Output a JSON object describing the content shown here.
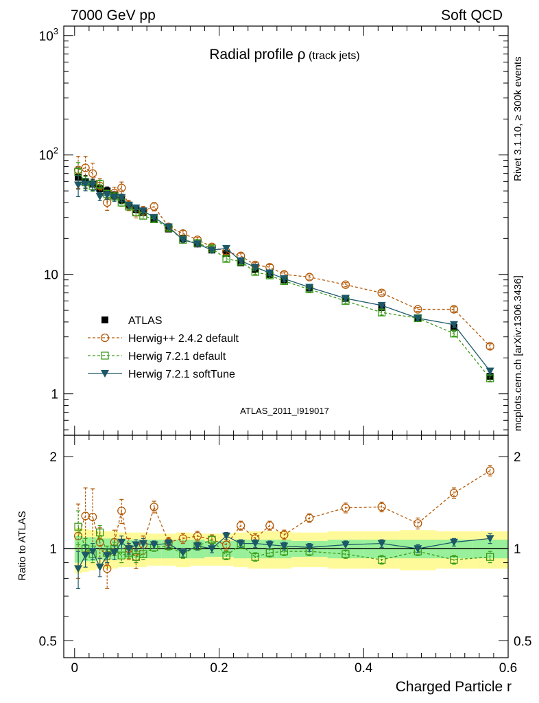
{
  "header": {
    "left": "7000 GeV pp",
    "right": "Soft QCD",
    "plot_title_main": "Radial profile ",
    "plot_title_rho": "ρ",
    "plot_title_sub": " (track jets)",
    "side_rivet": "Rivet 3.1.10, ≥ 300k events",
    "side_mcplots": "mcplots.cern.ch [arXiv:1306.3436]",
    "analysis_id": "ATLAS_2011_I919017"
  },
  "colors": {
    "atlas": "#000000",
    "herwigpp": "#b35806",
    "herwig721": "#3a9a1a",
    "softtune": "#1d5868",
    "band_yellow": "#fffa99",
    "band_green": "#99f09a"
  },
  "chart_data": [
    {
      "type": "scatter",
      "panel": "main",
      "yscale": "log",
      "xlabel": "Charged Particle r",
      "ylabel": "",
      "xlim": [
        -0.015,
        0.6
      ],
      "ylim": [
        0.45,
        1200
      ],
      "yticks": [
        {
          "value": 1000,
          "base": "10",
          "exp": "3"
        },
        {
          "value": 100,
          "base": "10",
          "exp": "2"
        },
        {
          "value": 10,
          "base": "10",
          "exp": ""
        },
        {
          "value": 1,
          "base": "1",
          "exp": ""
        }
      ],
      "x": [
        0.005,
        0.015,
        0.025,
        0.035,
        0.045,
        0.055,
        0.065,
        0.075,
        0.085,
        0.095,
        0.11,
        0.13,
        0.15,
        0.17,
        0.19,
        0.21,
        0.23,
        0.25,
        0.27,
        0.29,
        0.325,
        0.375,
        0.425,
        0.475,
        0.525,
        0.575
      ],
      "series": [
        {
          "name": "ATLAS",
          "key": "atlas",
          "marker": "square-filled",
          "values": [
            65,
            60,
            57,
            52,
            50,
            46,
            42,
            38,
            35,
            33,
            29,
            24,
            20,
            18,
            16,
            15,
            12.5,
            11,
            10,
            9,
            7.7,
            6.3,
            5.3,
            4.3,
            3.6,
            1.4
          ],
          "err_rel": [
            0.2,
            0.12,
            0.1,
            0.08,
            0.08,
            0.07,
            0.07,
            0.06,
            0.06,
            0.06,
            0.05,
            0.05,
            0.05,
            0.05,
            0.05,
            0.05,
            0.05,
            0.05,
            0.05,
            0.05,
            0.05,
            0.05,
            0.06,
            0.06,
            0.07,
            0.1
          ]
        },
        {
          "name": "Herwig++ 2.4.2 default",
          "key": "herwigpp",
          "marker": "circle-open",
          "dash": true,
          "values": [
            75,
            78,
            70,
            55,
            40,
            48,
            53,
            38,
            33,
            34,
            37,
            25,
            22,
            19.5,
            17,
            15.5,
            14.3,
            12,
            11.5,
            10,
            9.5,
            8.2,
            7,
            5.1,
            5.1,
            2.5
          ],
          "err_rel": [
            0.3,
            0.25,
            0.22,
            0.15,
            0.14,
            0.12,
            0.12,
            0.1,
            0.1,
            0.09,
            0.08,
            0.06,
            0.06,
            0.05,
            0.05,
            0.05,
            0.05,
            0.05,
            0.05,
            0.05,
            0.04,
            0.04,
            0.04,
            0.04,
            0.05,
            0.05
          ]
        },
        {
          "name": "Herwig 7.2.1 default",
          "key": "herwig721",
          "marker": "square-open",
          "dash": true,
          "values": [
            72,
            59,
            55,
            57,
            47,
            45,
            40,
            37,
            33,
            31,
            29,
            24.5,
            19.5,
            18.3,
            16.5,
            13.5,
            12.8,
            10.5,
            9.8,
            8.8,
            7.5,
            6,
            4.8,
            4.3,
            3.2,
            1.35
          ],
          "err_rel": [
            0.2,
            0.12,
            0.1,
            0.08,
            0.08,
            0.07,
            0.07,
            0.06,
            0.06,
            0.06,
            0.05,
            0.05,
            0.05,
            0.05,
            0.05,
            0.05,
            0.05,
            0.05,
            0.05,
            0.05,
            0.05,
            0.05,
            0.05,
            0.05,
            0.05,
            0.06
          ]
        },
        {
          "name": "Herwig 7.2.1 softTune",
          "key": "softtune",
          "marker": "triangle-down-filled",
          "dash": false,
          "values": [
            56,
            57,
            56,
            45,
            46,
            44,
            44,
            38,
            36,
            34,
            30,
            25,
            19.5,
            18,
            16,
            16.5,
            13,
            11.5,
            10.3,
            9.2,
            7.8,
            6.3,
            5.5,
            4.3,
            3.8,
            1.55
          ],
          "err_rel": [
            0.2,
            0.12,
            0.1,
            0.08,
            0.08,
            0.07,
            0.07,
            0.06,
            0.06,
            0.06,
            0.05,
            0.05,
            0.05,
            0.05,
            0.05,
            0.05,
            0.05,
            0.05,
            0.05,
            0.05,
            0.05,
            0.05,
            0.05,
            0.05,
            0.05,
            0.06
          ]
        }
      ],
      "legend_position": "middle-left"
    },
    {
      "type": "scatter",
      "panel": "ratio",
      "yscale": "log",
      "xlabel": "Charged Particle r",
      "ylabel": "Ratio to ATLAS",
      "xlim": [
        -0.015,
        0.6
      ],
      "ylim": [
        0.44,
        2.35
      ],
      "yticks": [
        {
          "value": 2,
          "label": "2"
        },
        {
          "value": 1,
          "label": "1"
        },
        {
          "value": 0.5,
          "label": "0.5"
        }
      ],
      "xticks": [
        {
          "value": 0,
          "label": "0"
        },
        {
          "value": 0.2,
          "label": "0.2"
        },
        {
          "value": 0.4,
          "label": "0.4"
        },
        {
          "value": 0.6,
          "label": "0.6"
        }
      ],
      "x": [
        0.005,
        0.015,
        0.025,
        0.035,
        0.045,
        0.055,
        0.065,
        0.075,
        0.085,
        0.095,
        0.11,
        0.13,
        0.15,
        0.17,
        0.19,
        0.21,
        0.23,
        0.25,
        0.27,
        0.29,
        0.325,
        0.375,
        0.425,
        0.475,
        0.525,
        0.575
      ],
      "band_edges": [
        0,
        0.01,
        0.02,
        0.03,
        0.04,
        0.05,
        0.06,
        0.07,
        0.08,
        0.09,
        0.1,
        0.12,
        0.14,
        0.16,
        0.18,
        0.2,
        0.22,
        0.24,
        0.26,
        0.28,
        0.3,
        0.35,
        0.4,
        0.45,
        0.5,
        0.55,
        0.6
      ],
      "band_stat": [
        0.1,
        0.09,
        0.09,
        0.08,
        0.08,
        0.08,
        0.07,
        0.07,
        0.07,
        0.07,
        0.07,
        0.07,
        0.07,
        0.07,
        0.06,
        0.06,
        0.07,
        0.07,
        0.07,
        0.07,
        0.06,
        0.07,
        0.07,
        0.07,
        0.07,
        0.07
      ],
      "band_total": [
        0.17,
        0.16,
        0.15,
        0.14,
        0.14,
        0.14,
        0.13,
        0.13,
        0.13,
        0.13,
        0.12,
        0.12,
        0.13,
        0.12,
        0.12,
        0.12,
        0.13,
        0.14,
        0.14,
        0.14,
        0.13,
        0.14,
        0.14,
        0.15,
        0.14,
        0.14
      ],
      "series": [
        {
          "name": "Herwig++ 2.4.2 default",
          "key": "herwigpp",
          "marker": "circle-open",
          "dash": true,
          "values": [
            1.1,
            1.28,
            1.27,
            1.05,
            0.86,
            1.05,
            1.33,
            1.0,
            0.94,
            1.03,
            1.37,
            1.05,
            1.08,
            1.1,
            1.07,
            1.03,
            1.19,
            1.08,
            1.19,
            1.11,
            1.26,
            1.36,
            1.37,
            1.21,
            1.52,
            1.8
          ],
          "err": [
            0.3,
            0.3,
            0.3,
            0.12,
            0.12,
            0.1,
            0.12,
            0.08,
            0.08,
            0.07,
            0.06,
            0.04,
            0.04,
            0.04,
            0.04,
            0.04,
            0.04,
            0.04,
            0.04,
            0.04,
            0.04,
            0.05,
            0.05,
            0.05,
            0.06,
            0.07
          ]
        },
        {
          "name": "Herwig 7.2.1 default",
          "key": "herwig721",
          "marker": "square-open",
          "dash": true,
          "values": [
            1.18,
            1.0,
            0.96,
            1.13,
            0.97,
            1.0,
            0.95,
            0.97,
            0.94,
            0.96,
            1.01,
            1.02,
            0.96,
            1.02,
            1.07,
            0.95,
            1.03,
            0.94,
            0.97,
            0.98,
            0.98,
            0.96,
            0.92,
            0.98,
            0.92,
            0.94
          ],
          "err": [
            0.15,
            0.08,
            0.06,
            0.06,
            0.05,
            0.05,
            0.05,
            0.04,
            0.04,
            0.04,
            0.03,
            0.03,
            0.03,
            0.03,
            0.03,
            0.03,
            0.03,
            0.03,
            0.03,
            0.03,
            0.03,
            0.03,
            0.03,
            0.03,
            0.03,
            0.04
          ]
        },
        {
          "name": "Herwig 7.2.1 softTune",
          "key": "softtune",
          "marker": "triangle-down-filled",
          "dash": false,
          "values": [
            0.86,
            0.95,
            0.98,
            0.87,
            0.95,
            0.97,
            1.05,
            1.0,
            1.03,
            1.04,
            1.03,
            1.04,
            0.97,
            1.02,
            1.0,
            1.1,
            1.04,
            1.04,
            1.03,
            1.02,
            1.01,
            1.03,
            1.04,
            1.0,
            1.05,
            1.08
          ],
          "err": [
            0.12,
            0.08,
            0.06,
            0.06,
            0.05,
            0.05,
            0.05,
            0.04,
            0.04,
            0.04,
            0.03,
            0.03,
            0.03,
            0.03,
            0.03,
            0.03,
            0.03,
            0.03,
            0.03,
            0.03,
            0.03,
            0.03,
            0.03,
            0.03,
            0.03,
            0.04
          ]
        }
      ]
    }
  ]
}
